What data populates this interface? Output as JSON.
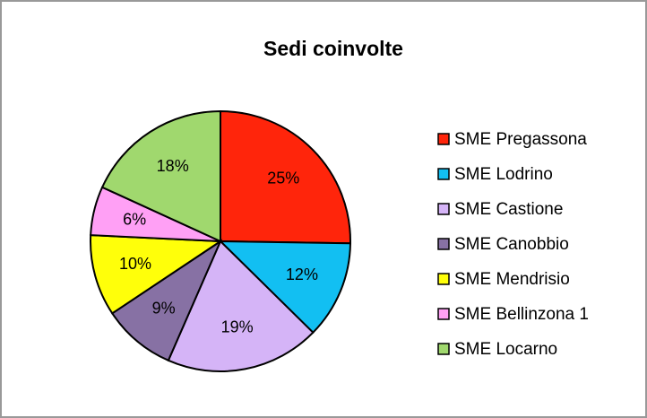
{
  "chart_data": {
    "type": "pie",
    "title": "Sedi coinvolte",
    "categories": [
      "SME Pregassona",
      "SME Lodrino",
      "SME Castione",
      "SME Canobbio",
      "SME Mendrisio",
      "SME Bellinzona 1",
      "SME Locarno"
    ],
    "values": [
      25,
      12,
      19,
      9,
      10,
      6,
      18
    ],
    "value_labels": [
      "25%",
      "12%",
      "19%",
      "9%",
      "10%",
      "6%",
      "18%"
    ],
    "colors": [
      "#ff250b",
      "#12bff2",
      "#d5b4f7",
      "#8771a4",
      "#ffff0a",
      "#ffa0f5",
      "#a0d86e"
    ],
    "legend": "right"
  }
}
